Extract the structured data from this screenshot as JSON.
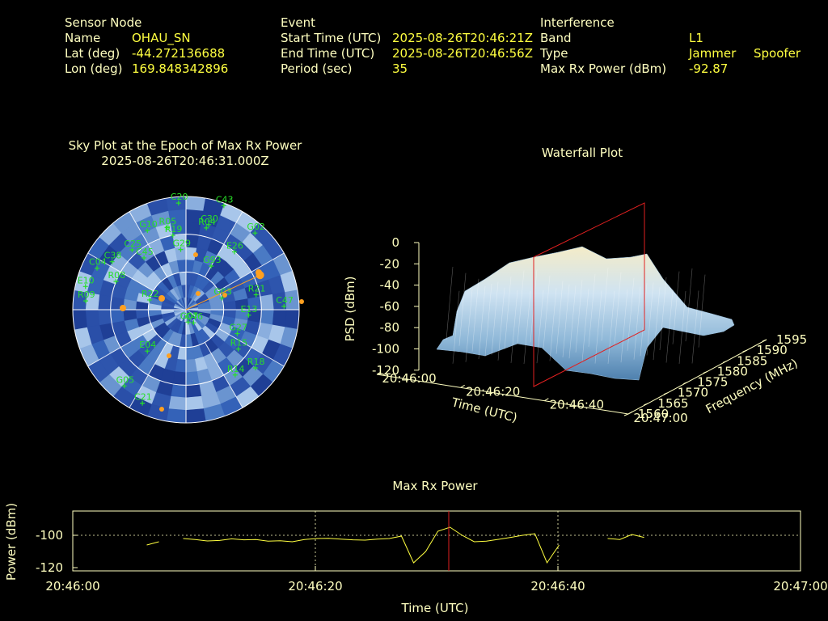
{
  "header": {
    "sensor": {
      "heading": "Sensor Node",
      "name_label": "Name",
      "name": "OHAU_SN",
      "lat_label": "Lat (deg)",
      "lat": "-44.272136688",
      "lon_label": "Lon (deg)",
      "lon": "169.848342896"
    },
    "event": {
      "heading": "Event",
      "start_label": "Start Time (UTC)",
      "start": "2025-08-26T20:46:21Z",
      "end_label": "End Time (UTC)",
      "end": "2025-08-26T20:46:56Z",
      "period_label": "Period (sec)",
      "period": "35"
    },
    "interference": {
      "heading": "Interference",
      "band_label": "Band",
      "band": "L1",
      "type_label": "Type",
      "type1": "Jammer",
      "type2": "Spoofer",
      "power_label": "Max Rx Power (dBm)",
      "power": "-92.87"
    }
  },
  "skyplot": {
    "title": "Sky Plot at the Epoch of Max Rx Power",
    "subtitle": "2025-08-26T20:46:31.000Z",
    "colors": {
      "sat": "#28e028",
      "ring": "#ffffff",
      "marker": "#ffa020",
      "base": "#2a4fa8"
    }
  },
  "waterfall": {
    "title": "Waterfall Plot",
    "zlabel": "PSD (dBm)",
    "xlabel": "Time (UTC)",
    "ylabel": "Frequency (MHz)",
    "z_ticks": [
      "0",
      "-20",
      "-40",
      "-60",
      "-80",
      "-100",
      "-120"
    ],
    "t_ticks": [
      "20:46:00",
      "20:46:20",
      "20:46:40",
      "20:47:00"
    ],
    "f_ticks": [
      "1560",
      "1565",
      "1570",
      "1575",
      "1580",
      "1585",
      "1590",
      "1595"
    ],
    "colors": {
      "surface": "#bcd8ec",
      "plane": "#e02020"
    }
  },
  "maxpower": {
    "title": "Max Rx Power",
    "ylabel": "Power (dBm)",
    "xlabel": "Time (UTC)",
    "y_ticks": [
      "-100",
      "-120"
    ],
    "x_ticks": [
      "20:46:00",
      "20:46:20",
      "20:46:40",
      "20:47:00"
    ],
    "colors": {
      "line": "#ffff40",
      "marker": "#e02020",
      "frame": "#ffffc0"
    }
  },
  "chart_data": [
    {
      "type": "scatter",
      "title": "Sky Plot at the Epoch of Max Rx Power",
      "subtitle": "2025-08-26T20:46:31.000Z",
      "satellites": [
        {
          "id": "C20",
          "az": 356,
          "el": 5
        },
        {
          "id": "C43",
          "az": 20,
          "el": 2
        },
        {
          "id": "C30",
          "az": 15,
          "el": 20
        },
        {
          "id": "R04",
          "az": 14,
          "el": 23
        },
        {
          "id": "G02",
          "az": 42,
          "el": 8
        },
        {
          "id": "R05",
          "az": 347,
          "el": 23
        },
        {
          "id": "G10",
          "az": 334,
          "el": 20
        },
        {
          "id": "R19",
          "az": 350,
          "el": 30
        },
        {
          "id": "E26",
          "az": 40,
          "el": 30
        },
        {
          "id": "G29",
          "az": 355,
          "el": 42
        },
        {
          "id": "C45",
          "az": 321,
          "el": 37
        },
        {
          "id": "G93",
          "az": 30,
          "el": 50
        },
        {
          "id": "C25",
          "az": 318,
          "el": 26
        },
        {
          "id": "C38",
          "az": 303,
          "el": 20
        },
        {
          "id": "C04",
          "az": 295,
          "el": 12
        },
        {
          "id": "R08",
          "az": 292,
          "el": 30
        },
        {
          "id": "E10",
          "az": 283,
          "el": 8
        },
        {
          "id": "R09",
          "az": 275,
          "el": 10
        },
        {
          "id": "R22",
          "az": 285,
          "el": 60
        },
        {
          "id": "G03",
          "az": 72,
          "el": 60
        },
        {
          "id": "R21",
          "az": 78,
          "el": 33
        },
        {
          "id": "C47",
          "az": 88,
          "el": 12
        },
        {
          "id": "E13",
          "az": 95,
          "el": 40
        },
        {
          "id": "G27",
          "az": 115,
          "el": 45
        },
        {
          "id": "R15",
          "az": 127,
          "el": 38
        },
        {
          "id": "G07",
          "az": 170,
          "el": 80
        },
        {
          "id": "C46",
          "az": 150,
          "el": 78
        },
        {
          "id": "E04",
          "az": 223,
          "el": 45
        },
        {
          "id": "G05",
          "az": 219,
          "el": 12
        },
        {
          "id": "C21",
          "az": 205,
          "el": 8
        },
        {
          "id": "R14",
          "az": 143,
          "el": 25
        },
        {
          "id": "R18",
          "az": 130,
          "el": 18
        }
      ],
      "interference_direction": {
        "az": 65,
        "el": 25
      },
      "ring_labels": []
    },
    {
      "type": "area",
      "title": "Waterfall Plot",
      "xlabel": "Time (UTC)",
      "ylabel": "Frequency (MHz)",
      "zlabel": "PSD (dBm)",
      "xlim": [
        "20:46:00",
        "20:47:00"
      ],
      "ylim": [
        1560,
        1595
      ],
      "zlim": [
        -120,
        0
      ],
      "marker_time": "20:46:31",
      "notes": "PSD surface approx -95 dBm baseline rising to approx -20 dBm between 20:46:10 and 20:46:56"
    },
    {
      "type": "line",
      "title": "Max Rx Power",
      "xlabel": "Time (UTC)",
      "ylabel": "Power (dBm)",
      "ylim": [
        -122,
        -85
      ],
      "x_ticks": [
        "20:46:00",
        "20:46:20",
        "20:46:40",
        "20:47:00"
      ],
      "y_ticks": [
        -100,
        -120
      ],
      "marker_time_sec": 31,
      "series": [
        {
          "segments": [
            [
              [
                6.1,
                -106
              ],
              [
                7.1,
                -104
              ]
            ],
            [
              [
                9.1,
                -102
              ],
              [
                10.1,
                -102.6
              ],
              [
                11.1,
                -103.5
              ],
              [
                12.1,
                -103.2
              ],
              [
                13.1,
                -102.2
              ],
              [
                14.1,
                -102.8
              ],
              [
                15.1,
                -102.6
              ],
              [
                16.1,
                -103.6
              ],
              [
                17.1,
                -103.4
              ],
              [
                18.1,
                -104
              ],
              [
                19.1,
                -102.6
              ],
              [
                20.1,
                -102
              ],
              [
                21.1,
                -101.9
              ],
              [
                22.1,
                -102.4
              ],
              [
                23.1,
                -102.8
              ],
              [
                24.1,
                -103
              ],
              [
                25.1,
                -102.4
              ],
              [
                26.1,
                -102
              ],
              [
                27.1,
                -100.5
              ],
              [
                28.1,
                -117
              ],
              [
                29.1,
                -110
              ],
              [
                30.1,
                -97.5
              ],
              [
                31.1,
                -95
              ],
              [
                32.1,
                -100
              ],
              [
                33.1,
                -104
              ],
              [
                34.1,
                -103.6
              ],
              [
                35.1,
                -102.5
              ],
              [
                36.1,
                -101.3
              ],
              [
                37.1,
                -100
              ],
              [
                38.1,
                -99
              ],
              [
                39.1,
                -117
              ],
              [
                40.1,
                -106
              ]
            ],
            [
              [
                44.1,
                -102
              ],
              [
                45.1,
                -102.6
              ],
              [
                46.1,
                -99.5
              ],
              [
                47.1,
                -101.3
              ]
            ]
          ]
        }
      ]
    }
  ]
}
